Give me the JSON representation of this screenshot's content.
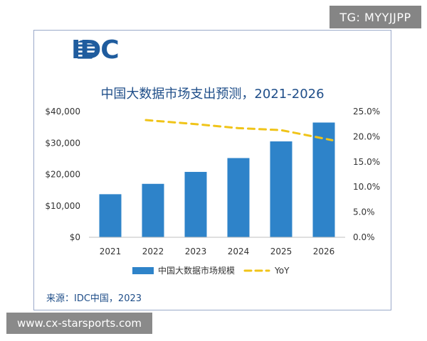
{
  "badge": {
    "text": "TG: MYYJJPP"
  },
  "watermark": {
    "text": "www.cx-starsports.com"
  },
  "logo": {
    "text": "IDC"
  },
  "source": "来源：IDC中国，2023",
  "colors": {
    "bar": "#2e83c9",
    "line": "#f0c419",
    "text": "#333333",
    "title": "#1f4e89",
    "logo": "#1f5c9e"
  },
  "chart_data": {
    "type": "bar",
    "title": "中国大数据市场支出预测，2021-2026",
    "categories": [
      "2021",
      "2022",
      "2023",
      "2024",
      "2025",
      "2026"
    ],
    "series": [
      {
        "name": "中国大数据市场规模",
        "type": "bar",
        "axis": "left",
        "values": [
          13700,
          17000,
          20800,
          25200,
          30500,
          36500
        ]
      },
      {
        "name": "YoY",
        "type": "line",
        "style": "dashed",
        "axis": "right",
        "values": [
          null,
          23.3,
          22.5,
          21.7,
          21.3,
          19.3
        ]
      }
    ],
    "y_left": {
      "ticks": [
        "$40,000",
        "$30,000",
        "$20,000",
        "$10,000",
        "$0"
      ],
      "ylim": [
        0,
        40000
      ]
    },
    "y_right": {
      "ticks": [
        "25.0%",
        "20.0%",
        "15.0%",
        "10.0%",
        "5.0%",
        "0.0%"
      ],
      "ylim": [
        0,
        25
      ]
    },
    "grid": false,
    "legend": "bottom"
  }
}
